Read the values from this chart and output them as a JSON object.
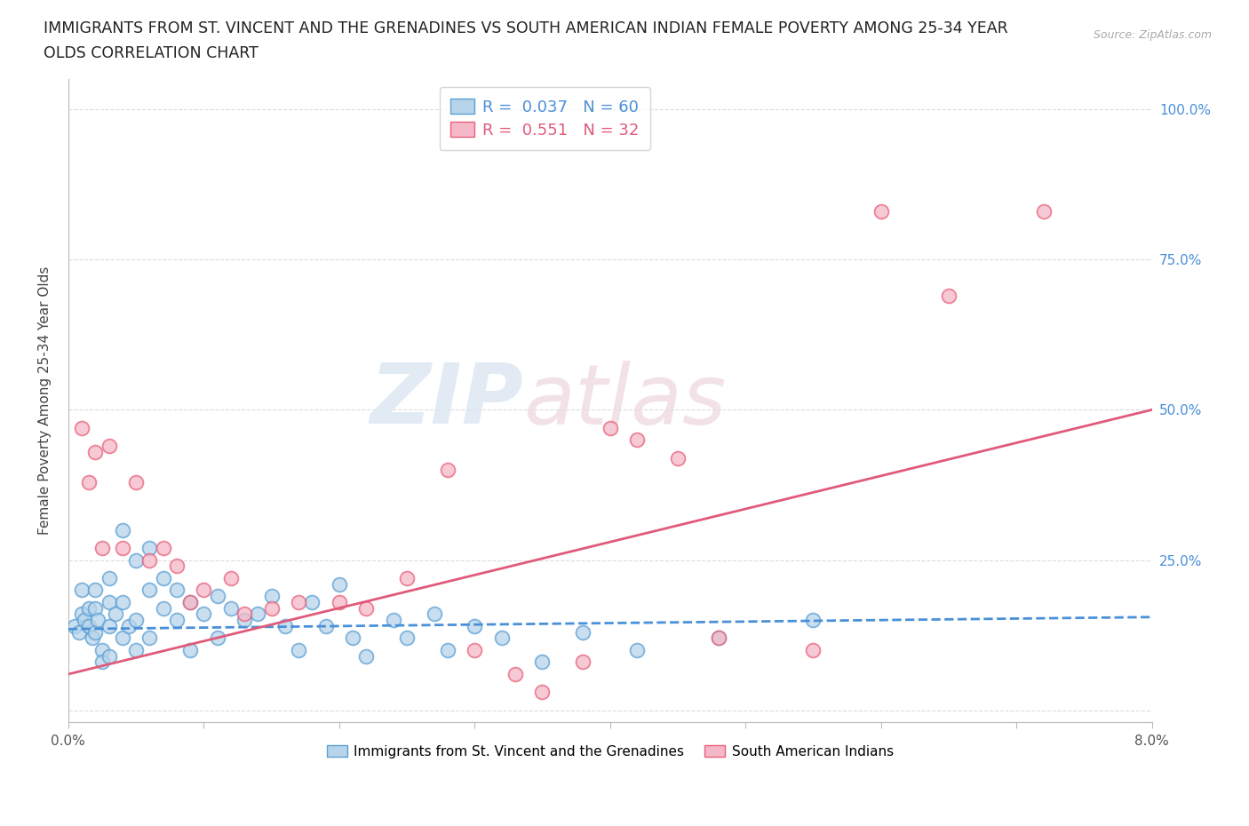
{
  "title_line1": "IMMIGRANTS FROM ST. VINCENT AND THE GRENADINES VS SOUTH AMERICAN INDIAN FEMALE POVERTY AMONG 25-34 YEAR",
  "title_line2": "OLDS CORRELATION CHART",
  "source_text": "Source: ZipAtlas.com",
  "ylabel": "Female Poverty Among 25-34 Year Olds",
  "xlim": [
    0.0,
    0.08
  ],
  "ylim": [
    -0.02,
    1.05
  ],
  "xticks": [
    0.0,
    0.01,
    0.02,
    0.03,
    0.04,
    0.05,
    0.06,
    0.07,
    0.08
  ],
  "xticklabels": [
    "0.0%",
    "",
    "",
    "",
    "",
    "",
    "",
    "",
    "8.0%"
  ],
  "ytick_positions": [
    0.0,
    0.25,
    0.5,
    0.75,
    1.0
  ],
  "ytick_labels_right": [
    "",
    "25.0%",
    "50.0%",
    "75.0%",
    "100.0%"
  ],
  "blue_R": 0.037,
  "blue_N": 60,
  "pink_R": 0.551,
  "pink_N": 32,
  "blue_fill_color": "#b8d4ea",
  "pink_fill_color": "#f5b8c8",
  "blue_edge_color": "#5a9fd4",
  "pink_edge_color": "#e8607a",
  "blue_line_color": "#4a90d9",
  "pink_line_color": "#e05a7a",
  "watermark_color": "#d8e8f0",
  "watermark_color2": "#e8d0d8",
  "grid_color": "#cccccc",
  "background_color": "#ffffff",
  "blue_scatter_x": [
    0.0005,
    0.0008,
    0.001,
    0.001,
    0.0012,
    0.0015,
    0.0015,
    0.0018,
    0.002,
    0.002,
    0.002,
    0.0022,
    0.0025,
    0.0025,
    0.003,
    0.003,
    0.003,
    0.003,
    0.0035,
    0.004,
    0.004,
    0.004,
    0.0045,
    0.005,
    0.005,
    0.005,
    0.006,
    0.006,
    0.006,
    0.007,
    0.007,
    0.008,
    0.008,
    0.009,
    0.009,
    0.01,
    0.011,
    0.011,
    0.012,
    0.013,
    0.014,
    0.015,
    0.016,
    0.017,
    0.018,
    0.019,
    0.02,
    0.021,
    0.022,
    0.024,
    0.025,
    0.027,
    0.028,
    0.03,
    0.032,
    0.035,
    0.038,
    0.042,
    0.048,
    0.055
  ],
  "blue_scatter_y": [
    0.14,
    0.13,
    0.2,
    0.16,
    0.15,
    0.17,
    0.14,
    0.12,
    0.2,
    0.17,
    0.13,
    0.15,
    0.1,
    0.08,
    0.22,
    0.18,
    0.14,
    0.09,
    0.16,
    0.3,
    0.18,
    0.12,
    0.14,
    0.25,
    0.15,
    0.1,
    0.27,
    0.2,
    0.12,
    0.22,
    0.17,
    0.2,
    0.15,
    0.18,
    0.1,
    0.16,
    0.19,
    0.12,
    0.17,
    0.15,
    0.16,
    0.19,
    0.14,
    0.1,
    0.18,
    0.14,
    0.21,
    0.12,
    0.09,
    0.15,
    0.12,
    0.16,
    0.1,
    0.14,
    0.12,
    0.08,
    0.13,
    0.1,
    0.12,
    0.15
  ],
  "pink_scatter_x": [
    0.001,
    0.0015,
    0.002,
    0.0025,
    0.003,
    0.004,
    0.005,
    0.006,
    0.007,
    0.008,
    0.009,
    0.01,
    0.012,
    0.013,
    0.015,
    0.017,
    0.02,
    0.022,
    0.025,
    0.028,
    0.03,
    0.033,
    0.035,
    0.038,
    0.04,
    0.042,
    0.045,
    0.048,
    0.055,
    0.06,
    0.065,
    0.072
  ],
  "pink_scatter_y": [
    0.47,
    0.38,
    0.43,
    0.27,
    0.44,
    0.27,
    0.38,
    0.25,
    0.27,
    0.24,
    0.18,
    0.2,
    0.22,
    0.16,
    0.17,
    0.18,
    0.18,
    0.17,
    0.22,
    0.4,
    0.1,
    0.06,
    0.03,
    0.08,
    0.47,
    0.45,
    0.42,
    0.12,
    0.1,
    0.83,
    0.69,
    0.83
  ],
  "blue_line_x": [
    0.0,
    0.08
  ],
  "blue_line_y": [
    0.135,
    0.155
  ],
  "pink_line_x": [
    0.0,
    0.08
  ],
  "pink_line_y": [
    0.06,
    0.5
  ]
}
